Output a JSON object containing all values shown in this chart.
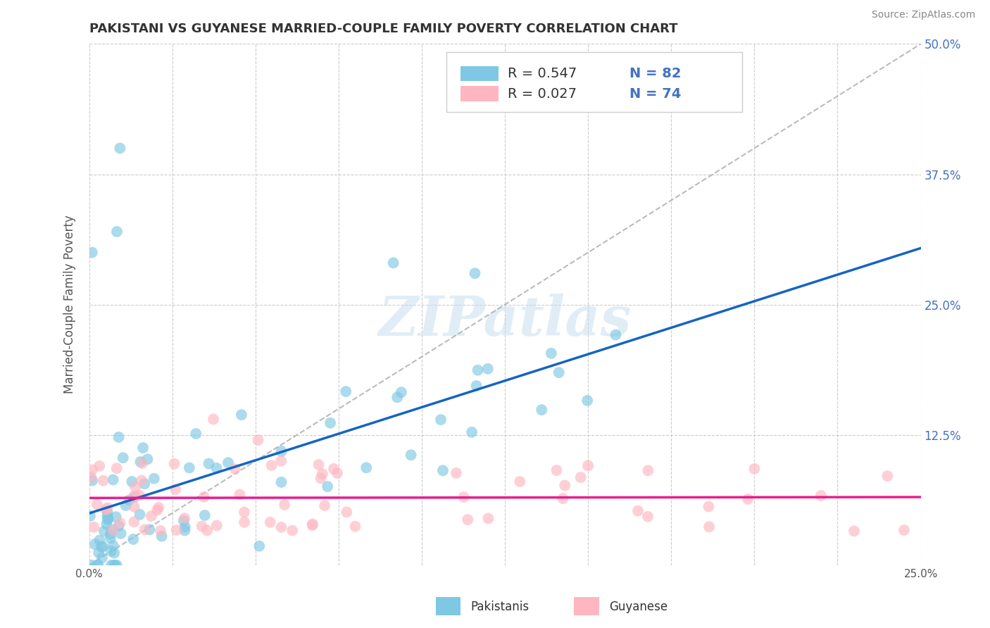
{
  "title": "PAKISTANI VS GUYANESE MARRIED-COUPLE FAMILY POVERTY CORRELATION CHART",
  "source": "Source: ZipAtlas.com",
  "ylabel_label": "Married-Couple Family Poverty",
  "xlim": [
    0.0,
    0.25
  ],
  "ylim": [
    0.0,
    0.5
  ],
  "xticks": [
    0.0,
    0.025,
    0.05,
    0.075,
    0.1,
    0.125,
    0.15,
    0.175,
    0.2,
    0.225,
    0.25
  ],
  "yticks": [
    0.0,
    0.125,
    0.25,
    0.375,
    0.5
  ],
  "R_pakistani": 0.547,
  "N_pakistani": 82,
  "R_guyanese": 0.027,
  "N_guyanese": 74,
  "color_pakistani": "#7ec8e3",
  "color_guyanese": "#ffb6c1",
  "color_pakistani_line": "#1565c0",
  "color_guyanese_line": "#e91e8c",
  "watermark_text": "ZIPatlas",
  "background_color": "#ffffff",
  "grid_color": "#cccccc",
  "legend_label_pak": "Pakistanis",
  "legend_label_guy": "Guyanese"
}
